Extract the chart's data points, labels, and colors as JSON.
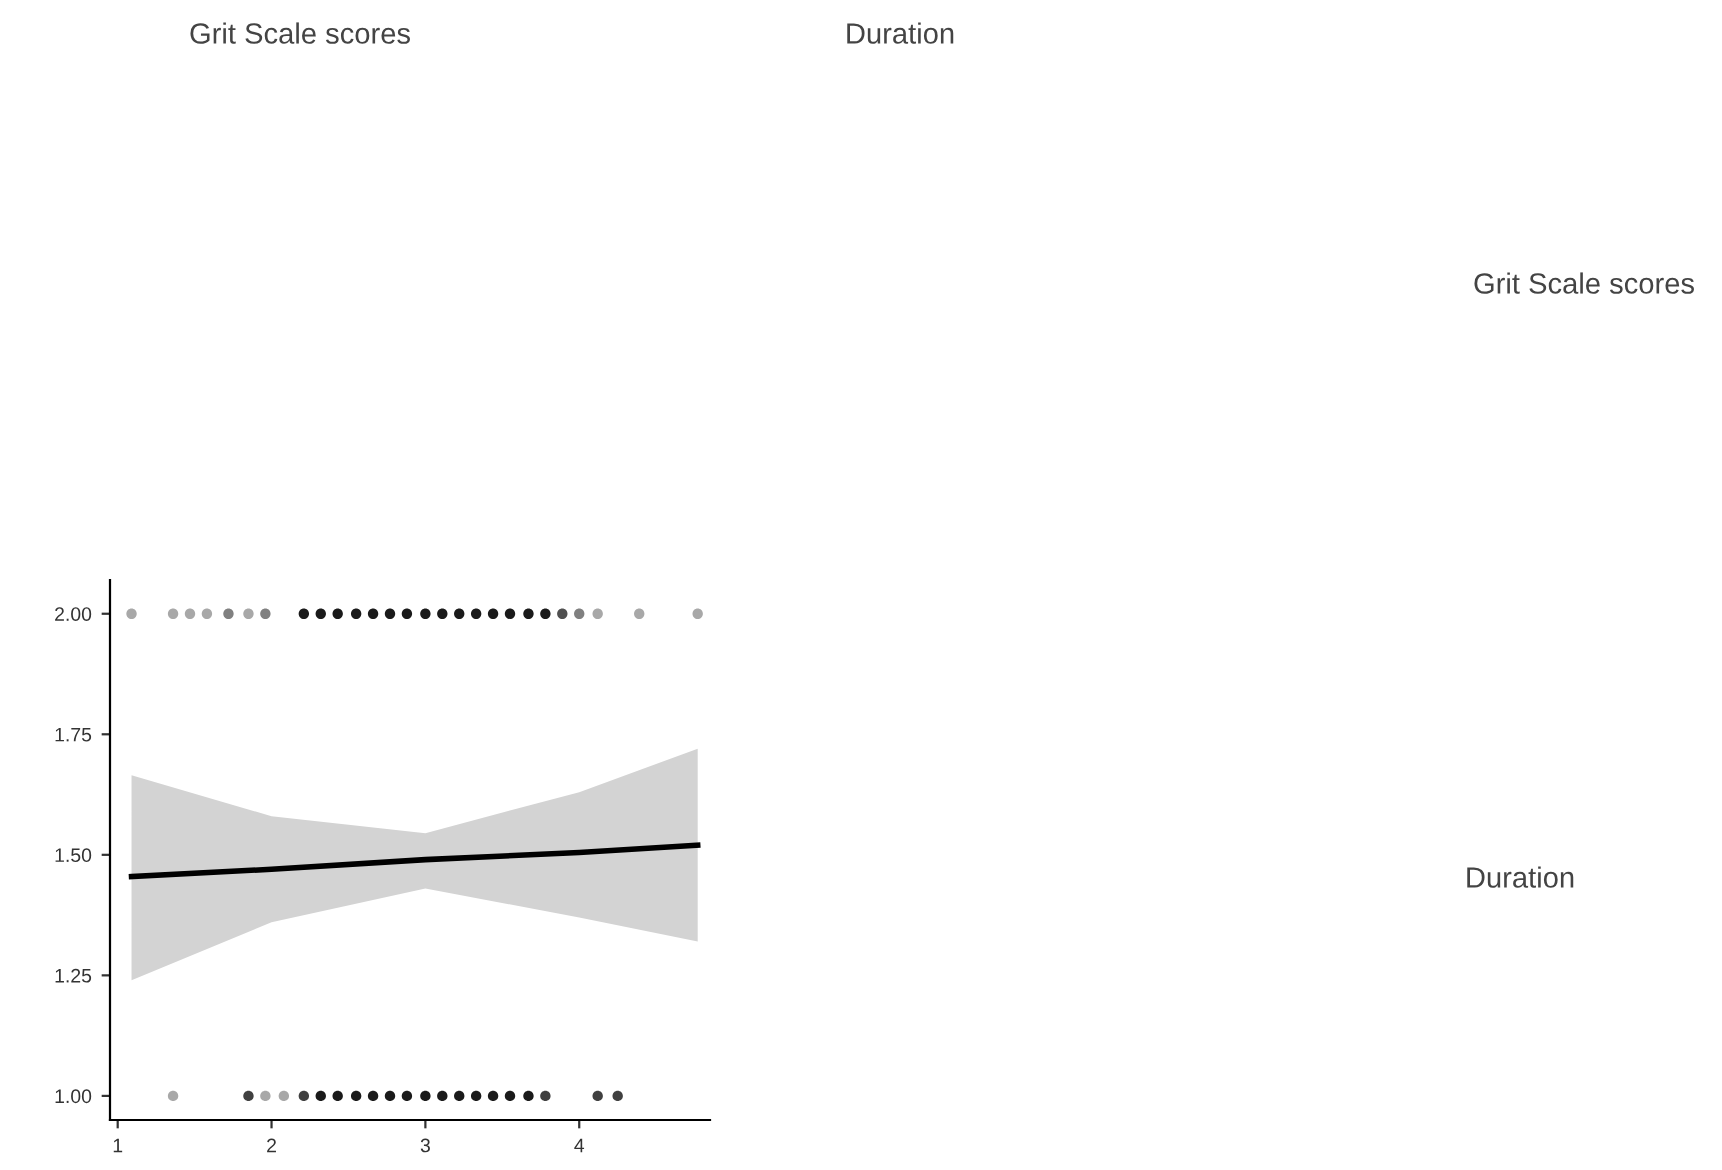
{
  "chart_data": {
    "type": "scatter",
    "annotations": [
      "Grit Scale scores",
      "Duration",
      "Grit Scale scores",
      "Duration"
    ],
    "xlim": [
      0.95,
      4.85
    ],
    "xticks": [
      1,
      2,
      3,
      4
    ],
    "ylim": [
      0.95,
      2.07
    ],
    "yticks": [
      {
        "value": 1,
        "label": "1.00"
      },
      {
        "value": 1.25,
        "label": "1.25"
      },
      {
        "value": 1.5,
        "label": "1.50"
      },
      {
        "value": 1.75,
        "label": "1.75"
      },
      {
        "value": 2,
        "label": "2.00"
      }
    ],
    "grid": false,
    "legend": false,
    "series": [
      {
        "marker": "circle",
        "x": [
          1.09,
          1.36,
          1.47,
          1.58,
          1.72,
          1.85,
          1.96,
          2.21,
          2.32,
          2.43,
          2.55,
          2.66,
          2.77,
          2.88,
          3.0,
          3.11,
          3.22,
          3.33,
          3.44,
          3.55,
          3.67,
          3.78,
          3.89,
          4.0,
          4.12,
          4.39,
          4.77,
          1.36,
          1.85,
          1.96,
          2.08,
          2.21,
          2.32,
          2.43,
          2.55,
          2.66,
          2.77,
          2.88,
          3.0,
          3.11,
          3.22,
          3.33,
          3.44,
          3.55,
          3.67,
          3.78,
          4.12,
          4.25
        ],
        "values": [
          2,
          2,
          2,
          2,
          2,
          2,
          2,
          2,
          2,
          2,
          2,
          2,
          2,
          2,
          2,
          2,
          2,
          2,
          2,
          2,
          2,
          2,
          2,
          2,
          2,
          2,
          2,
          1,
          1,
          1,
          1,
          1,
          1,
          1,
          1,
          1,
          1,
          1,
          1,
          1,
          1,
          1,
          1,
          1,
          1,
          1,
          1,
          1
        ],
        "colors": [
          "#a8a8a8",
          "#a8a8a8",
          "#a8a8a8",
          "#a8a8a8",
          "#808080",
          "#a8a8a8",
          "#808080",
          "#1a1a1a",
          "#1a1a1a",
          "#1a1a1a",
          "#1a1a1a",
          "#1a1a1a",
          "#1a1a1a",
          "#1a1a1a",
          "#1a1a1a",
          "#1a1a1a",
          "#1a1a1a",
          "#1a1a1a",
          "#1a1a1a",
          "#1a1a1a",
          "#1a1a1a",
          "#1a1a1a",
          "#505050",
          "#808080",
          "#a8a8a8",
          "#a8a8a8",
          "#a8a8a8",
          "#a8a8a8",
          "#404040",
          "#a8a8a8",
          "#a8a8a8",
          "#404040",
          "#1a1a1a",
          "#1a1a1a",
          "#1a1a1a",
          "#1a1a1a",
          "#1a1a1a",
          "#1a1a1a",
          "#1a1a1a",
          "#1a1a1a",
          "#1a1a1a",
          "#1a1a1a",
          "#1a1a1a",
          "#1a1a1a",
          "#1a1a1a",
          "#404040",
          "#404040",
          "#404040"
        ]
      },
      {
        "type": "line",
        "color": "#000000",
        "x": [
          1.09,
          2,
          3,
          4,
          4.77
        ],
        "values": [
          1.455,
          1.47,
          1.49,
          1.505,
          1.52
        ],
        "lower": [
          1.24,
          1.36,
          1.43,
          1.37,
          1.32
        ],
        "upper": [
          1.665,
          1.58,
          1.545,
          1.63,
          1.72
        ]
      }
    ]
  }
}
